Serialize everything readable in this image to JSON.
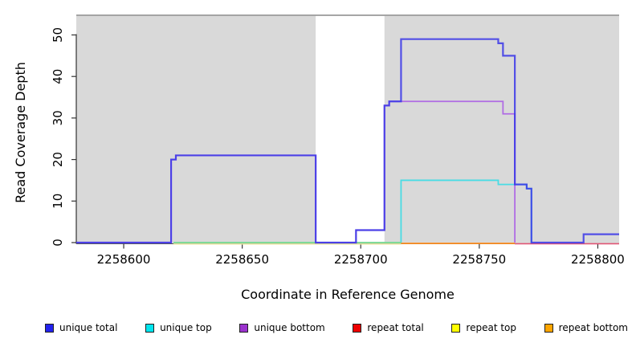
{
  "chart_data": {
    "type": "line",
    "subtype": "step-coverage",
    "title": "",
    "xlabel": "Coordinate in Reference Genome",
    "ylabel": "Read Coverage Depth",
    "xlim": [
      2258580,
      2258809
    ],
    "ylim": [
      0,
      54.7
    ],
    "xticks": [
      2258600,
      2258650,
      2258700,
      2258750,
      2258800
    ],
    "yticks": [
      0,
      10,
      20,
      30,
      40,
      50
    ],
    "grid": false,
    "legend_position": "bottom",
    "shaded_regions": [
      {
        "from": 2258580,
        "to": 2258681
      },
      {
        "from": 2258710,
        "to": 2258809
      }
    ],
    "region_color": "#D9D9D9",
    "region_top_line_color": "#999999",
    "axis_color": "#333333",
    "series": [
      {
        "id": "unique_total",
        "label": "unique total",
        "legend_color": "#2222EE",
        "line_color": "#3A36E8",
        "opacity": 0.85,
        "width": 2.2,
        "offset": 0,
        "points": [
          [
            2258580,
            0
          ],
          [
            2258620,
            20
          ],
          [
            2258622,
            21
          ],
          [
            2258681,
            0
          ],
          [
            2258698,
            3
          ],
          [
            2258710,
            33
          ],
          [
            2258712,
            34
          ],
          [
            2258717,
            49
          ],
          [
            2258758,
            48
          ],
          [
            2258760,
            45
          ],
          [
            2258765,
            14
          ],
          [
            2258770,
            13
          ],
          [
            2258772,
            0
          ],
          [
            2258794,
            2
          ],
          [
            2258809,
            2
          ]
        ]
      },
      {
        "id": "unique_top",
        "label": "unique top",
        "legend_color": "#00E5EE",
        "line_color": "#49DCE4",
        "opacity": 1,
        "width": 1.8,
        "offset": 0,
        "points": [
          [
            2258621,
            0
          ],
          [
            2258717,
            15
          ],
          [
            2258758,
            14
          ],
          [
            2258770,
            13
          ],
          [
            2258772,
            0
          ]
        ]
      },
      {
        "id": "unique_bottom",
        "label": "unique bottom",
        "legend_color": "#9A32CD",
        "line_color": "#B06CE4",
        "opacity": 1,
        "width": 1.8,
        "offset": 0,
        "points": [
          [
            2258580,
            0
          ],
          [
            2258620,
            20
          ],
          [
            2258622,
            21
          ],
          [
            2258681,
            0
          ],
          [
            2258698,
            3
          ],
          [
            2258710,
            33
          ],
          [
            2258712,
            34
          ],
          [
            2258760,
            31
          ],
          [
            2258765,
            0
          ]
        ]
      },
      {
        "id": "repeat_total",
        "label": "repeat total",
        "legend_color": "#EE0000",
        "line_color": "#E05575",
        "opacity": 1,
        "width": 1.6,
        "offset": 1.4,
        "points": [
          [
            2258765,
            0
          ],
          [
            2258809,
            0
          ]
        ]
      },
      {
        "id": "repeat_top",
        "label": "repeat top",
        "legend_color": "#FFFF00",
        "line_color": "#EEE8A0",
        "opacity": 1,
        "width": 1.4,
        "offset": 1.8,
        "points": [
          [
            2258621,
            0
          ],
          [
            2258717,
            0
          ]
        ]
      },
      {
        "id": "repeat_bottom",
        "label": "repeat bottom",
        "legend_color": "#FFA500",
        "line_color": "#FF8F1F",
        "opacity": 1,
        "width": 1.8,
        "offset": 1.0,
        "points": [
          [
            2258717,
            0
          ],
          [
            2258765,
            0
          ]
        ]
      }
    ],
    "overlap_hint": {
      "from": 2258621,
      "to": 2258717,
      "value": 0,
      "color": "#82D98E"
    }
  }
}
